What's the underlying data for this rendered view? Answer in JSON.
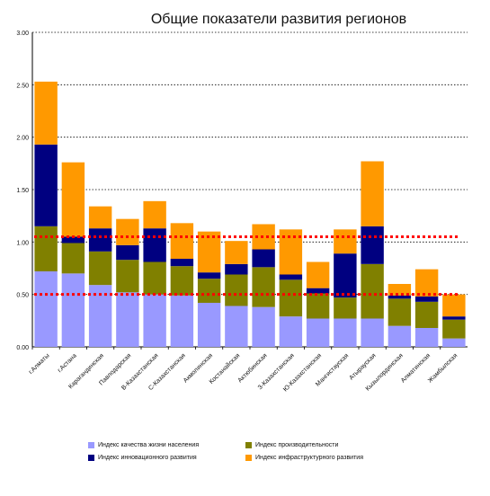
{
  "title": "Общие показатели развития регионов",
  "chart_data": {
    "type": "bar",
    "stacked": true,
    "title": "Общие показатели развития регионов",
    "categories": [
      "г.Алматы",
      "г.Астана",
      "Карагандинская",
      "Павлодарская",
      "В-Казахстанская",
      "С-Казахстанская",
      "Акмолинская",
      "Костанайская",
      "Актюбинская",
      "З-Казахстанская",
      "Ю-Казахстанская",
      "Мангистауская",
      "Атырауская",
      "Кызылординская",
      "Алматинская",
      "Жамбылская"
    ],
    "series": [
      {
        "name": "Индекс качества жизни населения",
        "color": "#9999ff",
        "values": [
          0.72,
          0.7,
          0.59,
          0.52,
          0.5,
          0.49,
          0.42,
          0.39,
          0.38,
          0.29,
          0.27,
          0.27,
          0.27,
          0.2,
          0.18,
          0.08
        ]
      },
      {
        "name": "Индекс производительности",
        "color": "#808000",
        "values": [
          0.43,
          0.29,
          0.32,
          0.31,
          0.31,
          0.28,
          0.23,
          0.3,
          0.38,
          0.35,
          0.24,
          0.2,
          0.52,
          0.26,
          0.25,
          0.18
        ]
      },
      {
        "name": "Индекс инновационного развития",
        "color": "#000080",
        "values": [
          0.78,
          0.06,
          0.22,
          0.14,
          0.32,
          0.07,
          0.06,
          0.1,
          0.17,
          0.05,
          0.05,
          0.42,
          0.36,
          0.03,
          0.05,
          0.03
        ]
      },
      {
        "name": "Индекс инфраструктурного развития",
        "color": "#ff9900",
        "values": [
          0.6,
          0.71,
          0.21,
          0.25,
          0.26,
          0.34,
          0.39,
          0.22,
          0.24,
          0.43,
          0.25,
          0.23,
          0.62,
          0.11,
          0.26,
          0.21
        ]
      }
    ],
    "reference_lines": [
      {
        "value": 1.05,
        "color": "#ff0000",
        "style": "dotted"
      },
      {
        "value": 0.5,
        "color": "#ff0000",
        "style": "dotted"
      }
    ],
    "ylim": [
      0,
      3
    ],
    "yticks": [
      "0.00",
      "0.50",
      "1.00",
      "1.50",
      "2.00",
      "2.50",
      "3.00"
    ],
    "grid": true,
    "legend": "bottom",
    "xlabel": "",
    "ylabel": ""
  }
}
